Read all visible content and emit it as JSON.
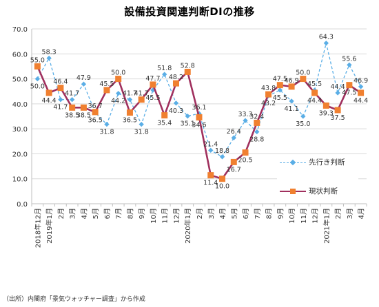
{
  "chart_data": {
    "type": "line",
    "title": "設備投資関連判断DIの推移",
    "ylim": [
      0,
      70
    ],
    "yticks": [
      "0.0",
      "10.0",
      "20.0",
      "30.0",
      "40.0",
      "50.0",
      "60.0",
      "70.0"
    ],
    "categories": [
      "2018年12月",
      "2019年1月",
      "2月",
      "3月",
      "4月",
      "5月",
      "6月",
      "7月",
      "8月",
      "9月",
      "10月",
      "11月",
      "12月",
      "2020年1月",
      "2月",
      "3月",
      "4月",
      "5月",
      "6月",
      "7月",
      "8月",
      "9月",
      "10月",
      "11月",
      "12月",
      "2021年1月",
      "2月",
      "3月",
      "4月"
    ],
    "series": [
      {
        "name": "先行き判断",
        "color": "#5aaee6",
        "style": "dashed",
        "values": [
          50.0,
          58.3,
          41.7,
          41.7,
          47.9,
          36.5,
          31.8,
          44.2,
          41.7,
          31.8,
          45.5,
          51.8,
          40.3,
          35.1,
          36.1,
          21.4,
          18.8,
          26.4,
          33.3,
          28.8,
          43.2,
          45.5,
          41.1,
          35.0,
          45.5,
          64.3,
          44.4,
          55.6,
          46.9
        ]
      },
      {
        "name": "現状判断",
        "color": "#a0305e",
        "marker_color": "#f08030",
        "style": "solid",
        "values": [
          55.0,
          44.4,
          46.4,
          38.5,
          38.5,
          36.7,
          45.5,
          50.0,
          36.5,
          41.7,
          47.7,
          35.4,
          48.2,
          52.8,
          34.6,
          11.4,
          10.0,
          16.7,
          20.5,
          32.4,
          43.8,
          47.5,
          46.9,
          50.0,
          44.4,
          39.3,
          37.5,
          47.5,
          44.4
        ]
      }
    ]
  },
  "footer": {
    "source": "（出所）内閣府「景気ウォッチャー調査」から作成"
  }
}
